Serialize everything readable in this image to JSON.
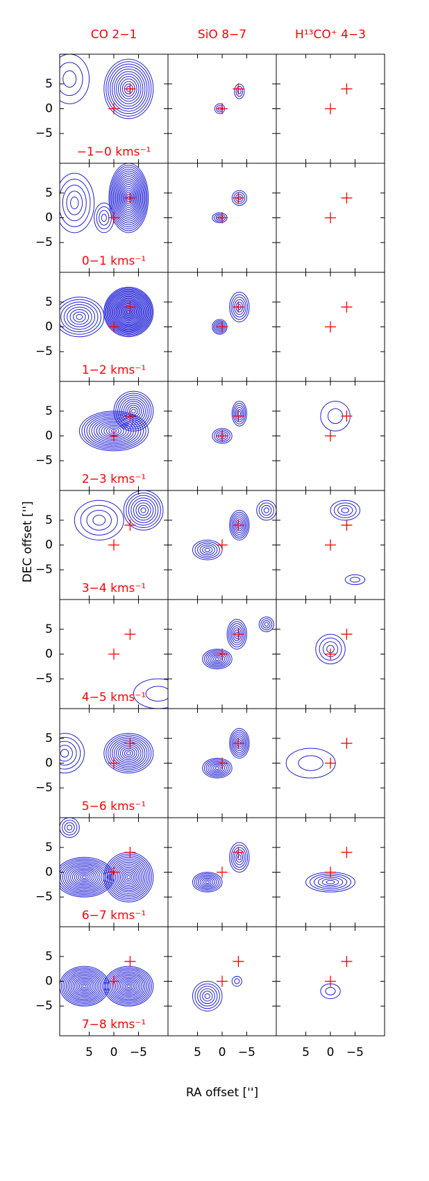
{
  "chart_data": {
    "type": "contour",
    "columns": [
      "CO 2−1",
      "SiO 8−7",
      "H¹³CO⁺ 4−3"
    ],
    "channels": [
      "−1−0 kms⁻¹",
      "0−1 kms⁻¹",
      "1−2 kms⁻¹",
      "2−3 kms⁻¹",
      "3−4 kms⁻¹",
      "4−5 kms⁻¹",
      "5−6 kms⁻¹",
      "6−7 kms⁻¹",
      "7−8 kms⁻¹"
    ],
    "xlabel": "RA offset ['']",
    "ylabel": "DEC offset ['']",
    "xlim": [
      11,
      -11
    ],
    "ylim": [
      -11,
      11
    ],
    "xticks": [
      5,
      0,
      {
        "value": -5,
        "label": "−5"
      }
    ],
    "yticks": [
      5,
      0,
      {
        "value": -5,
        "label": "−5"
      }
    ],
    "contour_color": "#1f1fd6",
    "markers": {
      "x": [
        0,
        -3.3
      ],
      "y": [
        0,
        4
      ],
      "color": "#ff0000"
    },
    "panels": [
      [
        [
          {
            "x": -3,
            "y": 4,
            "rx": 5,
            "ry": 6,
            "levels": 12
          },
          {
            "x": 9,
            "y": 6,
            "rx": 4,
            "ry": 5,
            "levels": 3
          }
        ],
        [
          {
            "x": -3.5,
            "y": 3.5,
            "rx": 1,
            "ry": 1.5,
            "levels": 3
          },
          {
            "x": 0.5,
            "y": 0,
            "rx": 1,
            "ry": 1,
            "levels": 3
          }
        ],
        []
      ],
      [
        [
          {
            "x": -3,
            "y": 4,
            "rx": 4,
            "ry": 7,
            "levels": 18
          },
          {
            "x": 8,
            "y": 3,
            "rx": 4,
            "ry": 6,
            "levels": 5
          },
          {
            "x": 2,
            "y": 0,
            "rx": 2,
            "ry": 3,
            "levels": 4
          }
        ],
        [
          {
            "x": -3.5,
            "y": 4,
            "rx": 1.5,
            "ry": 1.5,
            "levels": 4
          },
          {
            "x": 0.5,
            "y": 0,
            "rx": 1.5,
            "ry": 1,
            "levels": 4
          }
        ],
        []
      ],
      [
        [
          {
            "x": -3,
            "y": 3,
            "rx": 5,
            "ry": 5,
            "levels": 25
          },
          {
            "x": 7,
            "y": 2,
            "rx": 5,
            "ry": 4,
            "levels": 8
          }
        ],
        [
          {
            "x": -3.5,
            "y": 4,
            "rx": 2,
            "ry": 3,
            "levels": 6
          },
          {
            "x": 0.5,
            "y": 0,
            "rx": 1.5,
            "ry": 1.5,
            "levels": 6
          }
        ],
        []
      ],
      [
        [
          {
            "x": 0,
            "y": 1,
            "rx": 7,
            "ry": 4,
            "levels": 14
          },
          {
            "x": -4,
            "y": 5,
            "rx": 4,
            "ry": 4,
            "levels": 10
          }
        ],
        [
          {
            "x": -3.5,
            "y": 4.5,
            "rx": 1.5,
            "ry": 2.5,
            "levels": 6
          },
          {
            "x": 0,
            "y": 0,
            "rx": 2,
            "ry": 1.5,
            "levels": 5
          }
        ],
        [
          {
            "x": -1,
            "y": 4,
            "rx": 3,
            "ry": 3,
            "levels": 2
          }
        ]
      ],
      [
        [
          {
            "x": -6,
            "y": 7,
            "rx": 4,
            "ry": 4,
            "levels": 8
          },
          {
            "x": 3,
            "y": 5,
            "rx": 5,
            "ry": 4,
            "levels": 4
          }
        ],
        [
          {
            "x": -3.5,
            "y": 4,
            "rx": 2,
            "ry": 3,
            "levels": 8
          },
          {
            "x": 3,
            "y": -1,
            "rx": 3,
            "ry": 2,
            "levels": 6
          },
          {
            "x": -9,
            "y": 7,
            "rx": 2,
            "ry": 2,
            "levels": 4
          }
        ],
        [
          {
            "x": -3,
            "y": 7,
            "rx": 3,
            "ry": 2,
            "levels": 4
          },
          {
            "x": -5,
            "y": -7,
            "rx": 2,
            "ry": 1,
            "levels": 2
          }
        ]
      ],
      [
        [
          {
            "x": -9,
            "y": -8,
            "rx": 5,
            "ry": 3,
            "levels": 2
          }
        ],
        [
          {
            "x": -3,
            "y": 4,
            "rx": 2,
            "ry": 3,
            "levels": 7
          },
          {
            "x": 1,
            "y": -1,
            "rx": 3,
            "ry": 2,
            "levels": 8
          },
          {
            "x": -9,
            "y": 6,
            "rx": 1.5,
            "ry": 1.5,
            "levels": 4
          }
        ],
        [
          {
            "x": 0,
            "y": 1,
            "rx": 3,
            "ry": 3,
            "levels": 4
          }
        ]
      ],
      [
        [
          {
            "x": -3,
            "y": 2,
            "rx": 5,
            "ry": 4,
            "levels": 12
          },
          {
            "x": 10,
            "y": 2,
            "rx": 4,
            "ry": 4,
            "levels": 5
          }
        ],
        [
          {
            "x": -3.5,
            "y": 4,
            "rx": 2,
            "ry": 3,
            "levels": 8
          },
          {
            "x": 1,
            "y": -1,
            "rx": 3,
            "ry": 2,
            "levels": 8
          }
        ],
        [
          {
            "x": 4,
            "y": 0,
            "rx": 5,
            "ry": 3,
            "levels": 2
          }
        ]
      ],
      [
        [
          {
            "x": -3,
            "y": -1,
            "rx": 5,
            "ry": 5,
            "levels": 15
          },
          {
            "x": 6,
            "y": -1,
            "rx": 6,
            "ry": 4,
            "levels": 15
          },
          {
            "x": 9,
            "y": 9,
            "rx": 2,
            "ry": 2,
            "levels": 4
          }
        ],
        [
          {
            "x": -3.5,
            "y": 3,
            "rx": 2,
            "ry": 3,
            "levels": 6
          },
          {
            "x": 3,
            "y": -2,
            "rx": 3,
            "ry": 2,
            "levels": 8
          }
        ],
        [
          {
            "x": 0,
            "y": -2,
            "rx": 5,
            "ry": 2,
            "levels": 6
          }
        ]
      ],
      [
        [
          {
            "x": -3,
            "y": -1,
            "rx": 5,
            "ry": 4,
            "levels": 15
          },
          {
            "x": 6,
            "y": -1,
            "rx": 5,
            "ry": 4,
            "levels": 15
          }
        ],
        [
          {
            "x": 3,
            "y": -3,
            "rx": 3,
            "ry": 3,
            "levels": 6
          },
          {
            "x": -3,
            "y": 0,
            "rx": 1,
            "ry": 1,
            "levels": 2
          }
        ],
        [
          {
            "x": 0,
            "y": -2,
            "rx": 2,
            "ry": 1.5,
            "levels": 2
          }
        ]
      ]
    ]
  }
}
